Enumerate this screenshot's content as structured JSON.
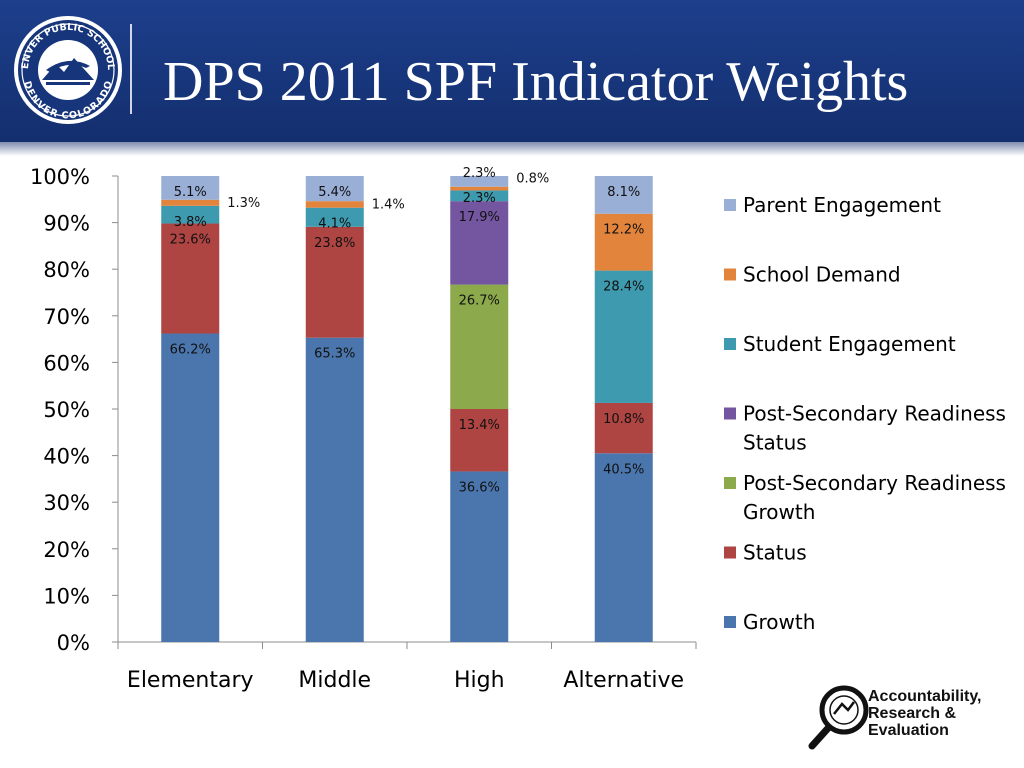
{
  "header": {
    "title": "DPS 2011 SPF Indicator Weights",
    "logo_text_top": "DENVER PUBLIC SCHOOLS",
    "logo_text_bottom": "DENVER COLORADO"
  },
  "footer": {
    "org_line1": "Accountability,",
    "org_line2": "Research &",
    "org_line3": "Evaluation"
  },
  "colors": {
    "header_bg": "#17357a",
    "growth": "#4a76ad",
    "status": "#ae4543",
    "psr_growth": "#8caa4c",
    "psr_status": "#7456a0",
    "student_engagement": "#3e9aae",
    "school_demand": "#e3843d",
    "parent_engagement": "#99afd6"
  },
  "chart_data": {
    "type": "bar",
    "stacked": true,
    "categories": [
      "Elementary",
      "Middle",
      "High",
      "Alternative"
    ],
    "ylim": [
      0,
      100
    ],
    "yticks": [
      "0%",
      "10%",
      "20%",
      "30%",
      "40%",
      "50%",
      "60%",
      "70%",
      "80%",
      "90%",
      "100%"
    ],
    "legend_position": "right",
    "series": [
      {
        "name": "Growth",
        "color": "#4a76ad",
        "values": [
          66.2,
          65.3,
          36.6,
          40.5
        ],
        "labels": [
          "66.2%",
          "65.3%",
          "36.6%",
          "40.5%"
        ]
      },
      {
        "name": "Status",
        "color": "#ae4543",
        "values": [
          23.6,
          23.8,
          13.4,
          10.8
        ],
        "labels": [
          "23.6%",
          "23.8%",
          "13.4%",
          "10.8%"
        ]
      },
      {
        "name": "Post-Secondary Readiness Growth",
        "color": "#8caa4c",
        "values": [
          0,
          0,
          26.7,
          0
        ],
        "labels": [
          "",
          "",
          "26.7%",
          ""
        ]
      },
      {
        "name": "Post-Secondary Readiness Status",
        "color": "#7456a0",
        "values": [
          0,
          0,
          17.9,
          0
        ],
        "labels": [
          "",
          "",
          "17.9%",
          ""
        ]
      },
      {
        "name": "Student Engagement",
        "color": "#3e9aae",
        "values": [
          3.8,
          4.1,
          2.3,
          28.4
        ],
        "labels": [
          "3.8%",
          "4.1%",
          "2.3%",
          "28.4%"
        ]
      },
      {
        "name": "School Demand",
        "color": "#e3843d",
        "values": [
          1.3,
          1.4,
          0.8,
          12.2
        ],
        "labels": [
          "1.3%",
          "1.4%",
          "0.8%",
          "12.2%"
        ]
      },
      {
        "name": "Parent Engagement",
        "color": "#99afd6",
        "values": [
          5.1,
          5.4,
          2.3,
          8.1
        ],
        "labels": [
          "5.1%",
          "5.4%",
          "2.3%",
          "8.1%"
        ]
      }
    ],
    "legend_lines": [
      [
        "Parent Engagement"
      ],
      [
        "School Demand"
      ],
      [
        "Student Engagement"
      ],
      [
        "Post-Secondary Readiness",
        "Status"
      ],
      [
        "Post-Secondary Readiness",
        "Growth"
      ],
      [
        "Status"
      ],
      [
        "Growth"
      ]
    ]
  }
}
